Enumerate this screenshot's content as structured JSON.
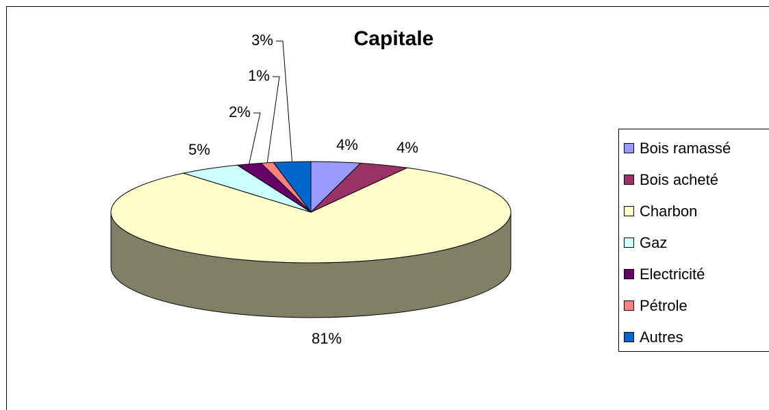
{
  "chart_data": {
    "type": "pie3d",
    "title": "Capitale",
    "categories": [
      "Bois ramassé",
      "Bois acheté",
      "Charbon",
      "Gaz",
      "Electricité",
      "Pétrole",
      "Autres"
    ],
    "values": [
      4,
      4,
      81,
      5,
      2,
      1,
      3
    ],
    "value_labels": [
      "4%",
      "4%",
      "81%",
      "5%",
      "2%",
      "1%",
      "3%"
    ],
    "colors": [
      "#9999ff",
      "#993366",
      "#ffffcc",
      "#ccffff",
      "#660066",
      "#ff8080",
      "#0066cc"
    ],
    "legend": "right"
  }
}
